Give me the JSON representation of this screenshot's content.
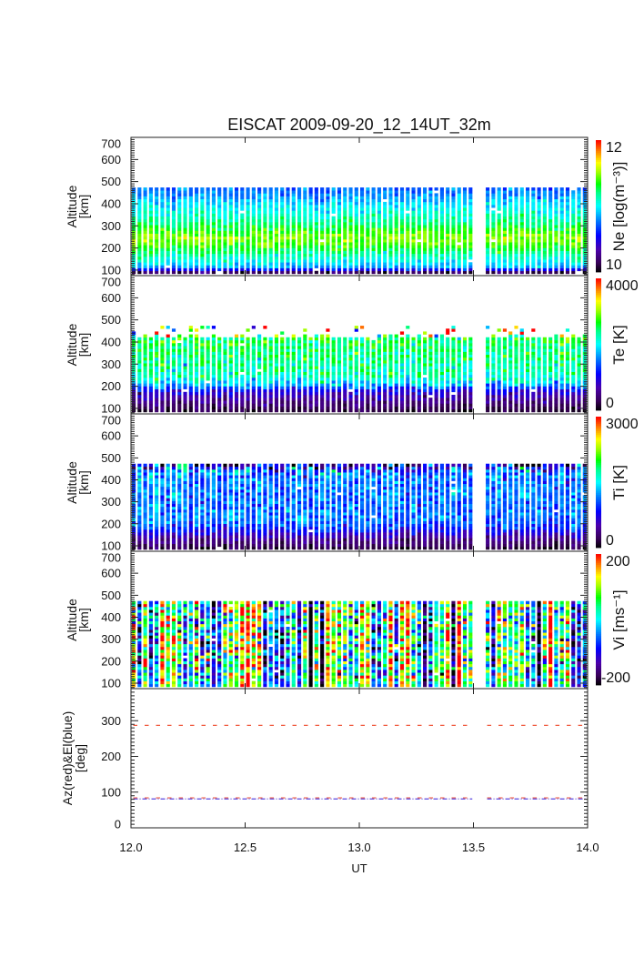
{
  "figure": {
    "title": "EISCAT 2009-09-20_12_14UT_32m",
    "xlabel": "UT"
  },
  "panels": [
    {
      "id": "ne",
      "ylabel_line1": "Altitude",
      "ylabel_line2": "[km]",
      "colorbar": {
        "title": "Ne [log(m⁻³)]",
        "max_label": "12",
        "min_label": "10"
      }
    },
    {
      "id": "te",
      "ylabel_line1": "Altitude",
      "ylabel_line2": "[km]",
      "colorbar": {
        "title": "Te [K]",
        "max_label": "4000",
        "min_label": "0"
      }
    },
    {
      "id": "ti",
      "ylabel_line1": "Altitude",
      "ylabel_line2": "[km]",
      "colorbar": {
        "title": "Ti [K]",
        "max_label": "3000",
        "min_label": "0"
      }
    },
    {
      "id": "vi",
      "ylabel_line1": "Altitude",
      "ylabel_line2": "[km]",
      "colorbar": {
        "title": "Vi [ms⁻¹]",
        "max_label": "200",
        "min_label": "-200"
      }
    },
    {
      "id": "azel",
      "ylabel_line1": "Az(red)&El(blue)",
      "ylabel_line2": "[deg]"
    }
  ],
  "colors": {
    "frame": "#222222",
    "az_line": "#f0583c",
    "el_line": "#5a46e0",
    "colormap": "rainbow (black-purple-blue-cyan-green-yellow-orange-red)"
  },
  "chart_data": [
    {
      "type": "heatmap",
      "name": "ne",
      "title": "EISCAT 2009-09-20_12_14UT_32m",
      "quantity": "Ne",
      "x_range": [
        12.0,
        14.0
      ],
      "xticks": [
        12.0,
        12.5,
        13.0,
        13.5,
        14.0
      ],
      "ylabel": "Altitude [km]",
      "ylim": [
        75,
        700
      ],
      "yticks": [
        100,
        200,
        300,
        400,
        500,
        600,
        700
      ],
      "ytick_labels": [
        "100",
        "200",
        "300",
        "400",
        "500",
        "600",
        "700"
      ],
      "colorbar_label": "Ne [log(m⁻³)]",
      "colorbar_range": [
        10,
        12
      ],
      "time_segments_UT": [
        [
          12.0,
          13.5
        ],
        [
          13.55,
          14.0
        ]
      ],
      "time_resolution_h": 0.025,
      "altitude_gates_km": [
        90,
        103,
        116,
        129,
        142,
        155,
        168,
        181,
        194,
        207,
        220,
        233,
        246,
        259,
        272,
        285,
        298,
        311,
        324,
        337,
        350,
        363,
        376,
        389,
        402,
        415,
        428,
        441,
        454,
        467
      ],
      "typical_profile": [
        10.15,
        10.55,
        10.85,
        10.95,
        11.02,
        11.08,
        11.14,
        11.22,
        11.3,
        11.36,
        11.42,
        11.46,
        11.47,
        11.45,
        11.4,
        11.34,
        11.28,
        11.23,
        11.18,
        11.14,
        11.1,
        11.06,
        11.02,
        10.98,
        10.94,
        10.9,
        10.86,
        10.82,
        10.78,
        10.75
      ],
      "gate_variability": 0.07,
      "column_variability": 0.03,
      "gate_coverage": 1
    },
    {
      "type": "heatmap",
      "name": "te",
      "quantity": "Te",
      "x_range": [
        12.0,
        14.0
      ],
      "xticks": [
        12.0,
        12.5,
        13.0,
        13.5,
        14.0
      ],
      "ylabel": "Altitude [km]",
      "ylim": [
        75,
        700
      ],
      "yticks": [
        100,
        200,
        300,
        400,
        500,
        600,
        700
      ],
      "ytick_labels": [
        "100",
        "200",
        "300",
        "400",
        "500",
        "600",
        "700"
      ],
      "colorbar_label": "Te [K]",
      "colorbar_range": [
        0,
        4000
      ],
      "time_segments_UT": [
        [
          12.0,
          13.5
        ],
        [
          13.55,
          14.0
        ]
      ],
      "time_resolution_h": 0.025,
      "altitude_gates_km": [
        90,
        103,
        116,
        129,
        142,
        155,
        168,
        181,
        194,
        207,
        220,
        233,
        246,
        259,
        272,
        285,
        298,
        311,
        324,
        337,
        350,
        363,
        376,
        389,
        402,
        415,
        428,
        441,
        454,
        467
      ],
      "typical_profile": [
        200,
        300,
        400,
        500,
        600,
        700,
        850,
        1050,
        1350,
        1700,
        1950,
        2100,
        2200,
        2250,
        2300,
        2300,
        2350,
        2350,
        2400,
        2400,
        2400,
        2450,
        2450,
        2450,
        2500,
        2500,
        2600,
        2700,
        2800,
        2800
      ],
      "gate_variability": [
        80,
        100,
        120,
        130,
        150,
        150,
        170,
        200,
        220,
        230,
        230,
        230,
        230,
        230,
        230,
        230,
        230,
        230,
        230,
        230,
        230,
        230,
        230,
        250,
        280,
        320,
        600,
        1200,
        1300,
        1300
      ],
      "column_variability": 80,
      "gate_coverage": [
        1,
        1,
        1,
        1,
        1,
        1,
        1,
        1,
        1,
        1,
        1,
        1,
        1,
        1,
        1,
        1,
        1,
        1,
        1,
        1,
        1,
        1,
        1,
        1,
        1,
        1,
        0.5,
        0.12,
        0.22,
        0.2
      ]
    },
    {
      "type": "heatmap",
      "name": "ti",
      "quantity": "Ti",
      "x_range": [
        12.0,
        14.0
      ],
      "xticks": [
        12.0,
        12.5,
        13.0,
        13.5,
        14.0
      ],
      "ylabel": "Altitude [km]",
      "ylim": [
        75,
        700
      ],
      "yticks": [
        100,
        200,
        300,
        400,
        500,
        600,
        700
      ],
      "ytick_labels": [
        "100",
        "200",
        "300",
        "400",
        "500",
        "600",
        "700"
      ],
      "colorbar_label": "Ti [K]",
      "colorbar_range": [
        0,
        3000
      ],
      "time_segments_UT": [
        [
          12.0,
          13.5
        ],
        [
          13.55,
          14.0
        ]
      ],
      "time_resolution_h": 0.025,
      "altitude_gates_km": [
        90,
        103,
        116,
        129,
        142,
        155,
        168,
        181,
        194,
        207,
        220,
        233,
        246,
        259,
        272,
        285,
        298,
        311,
        324,
        337,
        350,
        363,
        376,
        389,
        402,
        415,
        428,
        441,
        454,
        467
      ],
      "typical_profile": [
        150,
        250,
        330,
        420,
        520,
        650,
        800,
        950,
        1050,
        1100,
        1150,
        1150,
        1150,
        1150,
        1150,
        1150,
        1150,
        1150,
        1150,
        1150,
        1150,
        1150,
        1150,
        1150,
        1150,
        1150,
        1150,
        1100,
        900,
        700
      ],
      "gate_variability": [
        60,
        80,
        90,
        100,
        110,
        120,
        140,
        150,
        160,
        170,
        170,
        170,
        170,
        170,
        170,
        170,
        170,
        170,
        170,
        170,
        170,
        170,
        180,
        190,
        200,
        220,
        260,
        320,
        450,
        450
      ],
      "column_variability": 60,
      "gate_coverage": 1
    },
    {
      "type": "heatmap",
      "name": "vi",
      "quantity": "Vi",
      "x_range": [
        12.0,
        14.0
      ],
      "xticks": [
        12.0,
        12.5,
        13.0,
        13.5,
        14.0
      ],
      "ylabel": "Altitude [km]",
      "ylim": [
        75,
        700
      ],
      "yticks": [
        100,
        200,
        300,
        400,
        500,
        600,
        700
      ],
      "ytick_labels": [
        "100",
        "200",
        "300",
        "400",
        "500",
        "600",
        "700"
      ],
      "colorbar_label": "Vi [ms⁻¹]",
      "colorbar_range": [
        -200,
        200
      ],
      "time_segments_UT": [
        [
          12.0,
          13.5
        ],
        [
          13.55,
          14.0
        ]
      ],
      "time_resolution_h": 0.025,
      "altitude_gates_km": [
        90,
        103,
        116,
        129,
        142,
        155,
        168,
        181,
        194,
        207,
        220,
        233,
        246,
        259,
        272,
        285,
        298,
        311,
        324,
        337,
        350,
        363,
        376,
        389,
        402,
        415,
        428,
        441,
        454,
        467
      ],
      "typical_profile": [
        0,
        0,
        0,
        0,
        0,
        0,
        0,
        0,
        0,
        0,
        0,
        0,
        0,
        0,
        0,
        0,
        0,
        0,
        0,
        0,
        0,
        0,
        0,
        0,
        0,
        0,
        0,
        0,
        0,
        0
      ],
      "gate_variability": [
        25,
        35,
        50,
        70,
        80,
        80,
        80,
        80,
        80,
        80,
        80,
        80,
        80,
        80,
        80,
        80,
        80,
        80,
        80,
        80,
        80,
        80,
        80,
        80,
        80,
        80,
        80,
        80,
        80,
        80
      ],
      "column_variability": 110,
      "gate_coverage": 1
    },
    {
      "type": "line",
      "name": "azel",
      "ylabel": "Az(red)&El(blue) [deg]",
      "ylim": [
        0,
        390
      ],
      "yticks": [
        0,
        100,
        200,
        300
      ],
      "ytick_labels": [
        "0",
        "100",
        "200",
        "300"
      ],
      "x_range": [
        12.0,
        14.0
      ],
      "xlabel": "UT",
      "xticks": [
        12.0,
        12.5,
        13.0,
        13.5,
        14.0
      ],
      "xtick_labels": [
        "12.0",
        "12.5",
        "13.0",
        "13.5",
        "14.0"
      ],
      "time_segments_UT": [
        [
          12.0,
          13.5
        ],
        [
          13.55,
          14.0
        ]
      ],
      "series": [
        {
          "name": "Az (red)",
          "color": "#f0583c",
          "style": "dashed",
          "values_deg": [
            287,
            84
          ]
        },
        {
          "name": "El (blue)",
          "color": "#5a46e0",
          "style": "dash-dot",
          "values_deg": [
            81
          ]
        }
      ]
    }
  ]
}
